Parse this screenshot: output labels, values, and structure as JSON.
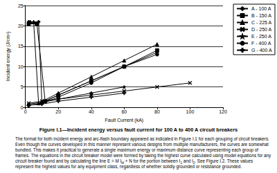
{
  "chart_data": {
    "type": "line",
    "x_label": "Fault Current (kA)",
    "y_label": "Incident energy (J/cm²)",
    "xlim": [
      0,
      120
    ],
    "xticks": [
      0,
      20,
      40,
      60,
      80,
      100,
      120
    ],
    "ylim": [
      0,
      25
    ],
    "yticks": [
      0,
      5,
      10,
      15,
      20,
      25
    ],
    "grid": true,
    "legend": "right",
    "series": [
      {
        "name": "A - 100 A",
        "color": "#000000",
        "marker": "diamond",
        "x": [
          2,
          8,
          10,
          20,
          40,
          60,
          80
        ],
        "values": [
          21,
          21,
          1.2,
          3,
          6.5,
          10,
          13.5
        ]
      },
      {
        "name": "B - 150 A",
        "color": "#000000",
        "marker": "square",
        "x": [
          2,
          7,
          12,
          20,
          40,
          60,
          80
        ],
        "values": [
          20.5,
          20.5,
          1.5,
          3,
          6.5,
          10,
          14
        ]
      },
      {
        "name": "C - 225 A",
        "color": "#000000",
        "marker": "triangle",
        "x": [
          3,
          5,
          8,
          20,
          40,
          60,
          80
        ],
        "values": [
          21,
          21,
          1,
          3.5,
          7.5,
          11.5,
          15.5
        ]
      },
      {
        "name": "D - 250 A",
        "color": "#000000",
        "marker": "x",
        "x": [
          2,
          10,
          20,
          40,
          60,
          80,
          100
        ],
        "values": [
          1,
          1.5,
          2,
          3,
          4,
          5,
          6
        ]
      },
      {
        "name": "E - 250 A",
        "color": "#000000",
        "marker": "star",
        "x": [
          2,
          10,
          20,
          40,
          60
        ],
        "values": [
          0.8,
          1.2,
          2,
          3.5,
          5
        ]
      },
      {
        "name": "F - 400 A",
        "color": "#000000",
        "marker": "circle",
        "x": [
          2,
          10,
          20,
          40,
          60,
          80
        ],
        "values": [
          0.5,
          1,
          2.5,
          6,
          10,
          13
        ]
      },
      {
        "name": "G - 400 A",
        "color": "#000000",
        "marker": "plus",
        "x": [
          2,
          10,
          20,
          40,
          60
        ],
        "values": [
          0.5,
          0.8,
          1.5,
          2.5,
          3.5
        ]
      }
    ]
  },
  "caption": "Figure I.1—Incident energy versus fault current for 100 A to 400 A circuit breakers",
  "body": [
    {
      "text": "The format for both incident energy and arc-flash boundary appeared as indicated in Figure I.1 for each grouping of circuit breakers. Even though the curves developed in this manner represent various designs from multiple manufacturers, the curves are somewhat bundled. This makes it practical to generate a single maximum energy or maximum distance curve representing each group of frames. The equations in the circuit breaker model were formed by taking the highest curve calculated using model equations for any circuit breaker found and by calculating the line E = M I"
    },
    {
      "text": "bf",
      "sub": true
    },
    {
      "text": " + N for the portion between I"
    },
    {
      "text": "1",
      "sub": true
    },
    {
      "text": " and I"
    },
    {
      "text": "2",
      "sub": true
    },
    {
      "text": ". See Figure I.2. These values represent the highest values for any equipment class, regardless of whether solidly grounded or resistance grounded."
    }
  ]
}
